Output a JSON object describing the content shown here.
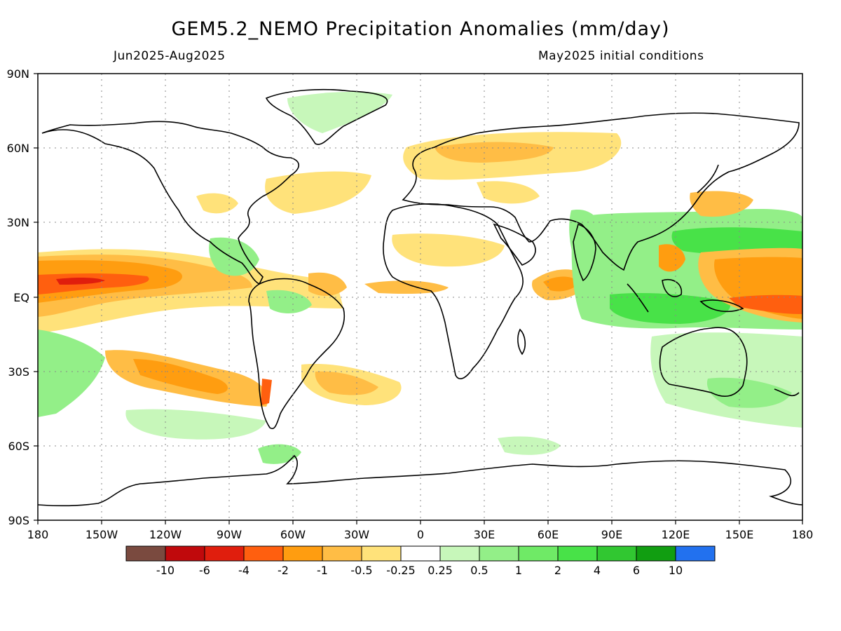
{
  "header": {
    "title": "GEM5.2_NEMO Precipitation Anomalies (mm/day)",
    "period": "Jun2025-Aug2025",
    "init": "May2025 initial conditions"
  },
  "axes": {
    "lat_labels": [
      "90N",
      "60N",
      "30N",
      "EQ",
      "30S",
      "60S",
      "90S"
    ],
    "lon_labels": [
      "180",
      "150W",
      "120W",
      "90W",
      "60W",
      "30W",
      "0",
      "30E",
      "60E",
      "90E",
      "120E",
      "150E",
      "180"
    ]
  },
  "legend": {
    "colors": [
      "#7a4a3f",
      "#c0090c",
      "#e01e0d",
      "#ff5f0f",
      "#ff9d10",
      "#ffbd45",
      "#ffe27a",
      "#ffffff",
      "#c7f7ba",
      "#93ef88",
      "#6fea66",
      "#48e248",
      "#31c731",
      "#119e11",
      "#2271ef"
    ],
    "labels": [
      "-10",
      "-6",
      "-4",
      "-2",
      "-1",
      "-0.5",
      "-0.25",
      "0.25",
      "0.5",
      "1",
      "2",
      "4",
      "6",
      "10"
    ]
  },
  "anomaly_regions": [
    {
      "name": "central-pacific-equatorial-dry",
      "lon": -160,
      "lat": 5,
      "value": -8
    },
    {
      "name": "south-pacific-dry-band",
      "lon": -110,
      "lat": -30,
      "value": -1.5
    },
    {
      "name": "maritime-continent-wet",
      "lon": 110,
      "lat": -5,
      "value": 4
    },
    {
      "name": "west-pacific-dry",
      "lon": 160,
      "lat": 5,
      "value": -4
    },
    {
      "name": "north-pacific-wet",
      "lon": 150,
      "lat": 22,
      "value": 2
    },
    {
      "name": "indian-ocean-dry",
      "lon": 60,
      "lat": 5,
      "value": -2
    },
    {
      "name": "eurasia-dry",
      "lon": 40,
      "lat": 58,
      "value": -0.5
    },
    {
      "name": "south-atlantic-dry",
      "lon": -30,
      "lat": -32,
      "value": -1
    },
    {
      "name": "southern-ocean-wet",
      "lon": -100,
      "lat": -50,
      "value": 0.5
    },
    {
      "name": "australia-wet",
      "lon": 150,
      "lat": -30,
      "value": 1
    }
  ]
}
